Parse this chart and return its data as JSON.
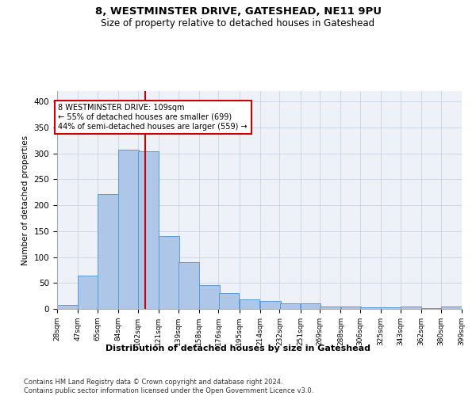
{
  "title": "8, WESTMINSTER DRIVE, GATESHEAD, NE11 9PU",
  "subtitle": "Size of property relative to detached houses in Gateshead",
  "xlabel": "Distribution of detached houses by size in Gateshead",
  "ylabel": "Number of detached properties",
  "bar_left_edges": [
    28,
    47,
    65,
    84,
    102,
    121,
    139,
    158,
    176,
    195,
    214,
    232,
    251,
    269,
    288,
    306,
    325,
    343,
    362,
    380
  ],
  "bar_heights": [
    8,
    64,
    222,
    307,
    304,
    140,
    90,
    46,
    30,
    19,
    15,
    11,
    10,
    4,
    5,
    3,
    3,
    4,
    1,
    4
  ],
  "bin_width": 19,
  "bar_color": "#aec6e8",
  "bar_edge_color": "#5b9bd5",
  "grid_color": "#d0d8e8",
  "tick_labels": [
    "28sqm",
    "47sqm",
    "65sqm",
    "84sqm",
    "102sqm",
    "121sqm",
    "139sqm",
    "158sqm",
    "176sqm",
    "195sqm",
    "214sqm",
    "232sqm",
    "251sqm",
    "269sqm",
    "288sqm",
    "306sqm",
    "325sqm",
    "343sqm",
    "362sqm",
    "380sqm",
    "399sqm"
  ],
  "property_size": 109,
  "vline_color": "#cc0000",
  "annotation_text": "8 WESTMINSTER DRIVE: 109sqm\n← 55% of detached houses are smaller (699)\n44% of semi-detached houses are larger (559) →",
  "annotation_box_color": "#ffffff",
  "annotation_border_color": "#cc0000",
  "ylim": [
    0,
    420
  ],
  "yticks": [
    0,
    50,
    100,
    150,
    200,
    250,
    300,
    350,
    400
  ],
  "footnote": "Contains HM Land Registry data © Crown copyright and database right 2024.\nContains public sector information licensed under the Open Government Licence v3.0.",
  "background_color": "#eef2f8",
  "fig_width": 6.0,
  "fig_height": 5.0,
  "dpi": 100
}
